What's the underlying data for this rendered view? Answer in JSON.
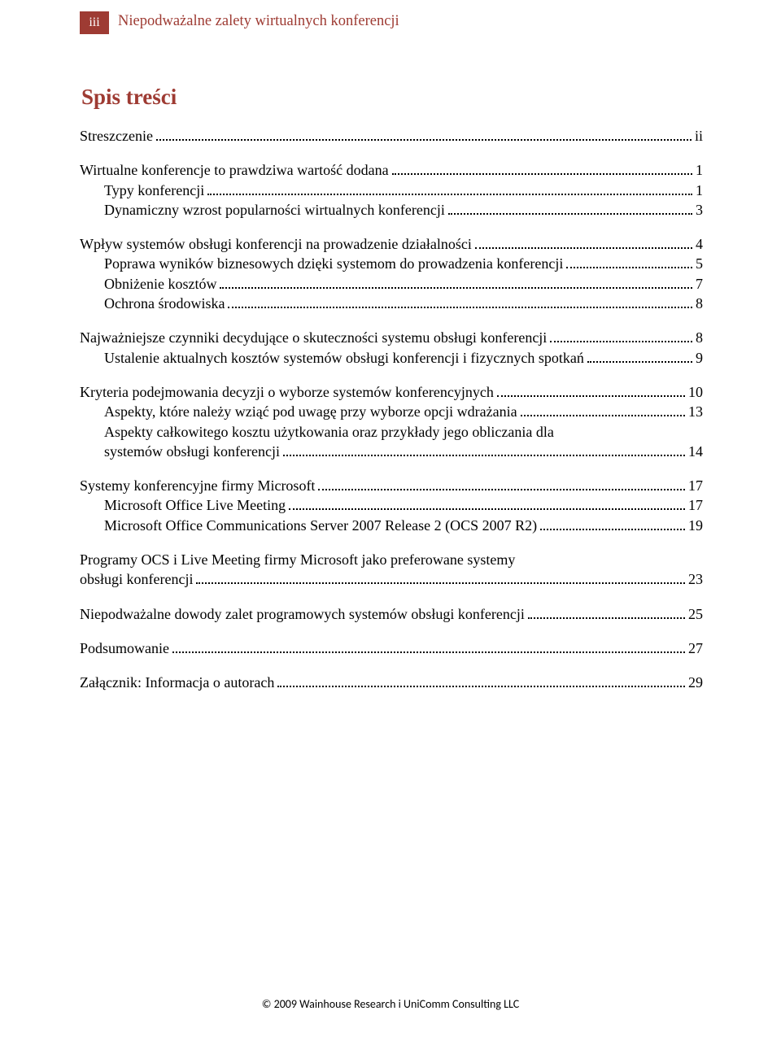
{
  "colors": {
    "accent": "#9e3b33",
    "text": "#000000",
    "bg": "#ffffff"
  },
  "header": {
    "page_number": "iii",
    "running_title": "Niepodważalne zalety wirtualnych konferencji"
  },
  "toc_heading": "Spis treści",
  "toc": [
    {
      "type": "block",
      "items": [
        {
          "level": 0,
          "label": "Streszczenie",
          "page": "ii"
        }
      ]
    },
    {
      "type": "block",
      "items": [
        {
          "level": 0,
          "label": "Wirtualne konferencje to prawdziwa wartość dodana",
          "page": "1"
        },
        {
          "level": 1,
          "label": "Typy konferencji",
          "page": "1"
        },
        {
          "level": 1,
          "label": "Dynamiczny wzrost popularności wirtualnych konferencji",
          "page": "3"
        }
      ]
    },
    {
      "type": "block",
      "items": [
        {
          "level": 0,
          "label": "Wpływ systemów obsługi konferencji na prowadzenie działalności",
          "page": "4"
        },
        {
          "level": 1,
          "label": "Poprawa wyników biznesowych dzięki systemom do prowadzenia konferencji",
          "page": "5"
        },
        {
          "level": 1,
          "label": "Obniżenie kosztów",
          "page": "7"
        },
        {
          "level": 1,
          "label": "Ochrona środowiska",
          "page": "8"
        }
      ]
    },
    {
      "type": "block",
      "items": [
        {
          "level": 0,
          "label": "Najważniejsze czynniki decydujące o skuteczności systemu obsługi konferencji",
          "page": "8"
        },
        {
          "level": 1,
          "label": "Ustalenie aktualnych kosztów systemów obsługi konferencji i fizycznych spotkań",
          "page": "9"
        }
      ]
    },
    {
      "type": "block",
      "items": [
        {
          "level": 0,
          "label": "Kryteria podejmowania decyzji o wyborze systemów konferencyjnych",
          "page": "10"
        },
        {
          "level": 1,
          "label": "Aspekty, które należy wziąć pod uwagę przy wyborze opcji wdrażania",
          "page": "13"
        },
        {
          "level": 1,
          "label_lines": [
            "Aspekty całkowitego kosztu użytkowania oraz przykłady jego obliczania dla",
            "systemów obsługi konferencji"
          ],
          "page": "14"
        }
      ]
    },
    {
      "type": "block",
      "items": [
        {
          "level": 0,
          "label": "Systemy konferencyjne firmy Microsoft",
          "page": "17"
        },
        {
          "level": 1,
          "label": "Microsoft Office Live Meeting",
          "page": "17"
        },
        {
          "level": 1,
          "label": "Microsoft Office Communications Server 2007 Release 2 (OCS 2007 R2)",
          "page": "19"
        }
      ]
    },
    {
      "type": "block",
      "items": [
        {
          "level": 0,
          "label_lines": [
            "Programy OCS i Live Meeting firmy Microsoft jako preferowane systemy",
            "obsługi konferencji"
          ],
          "page": "23"
        }
      ]
    },
    {
      "type": "block",
      "items": [
        {
          "level": 0,
          "label": "Niepodważalne dowody zalet programowych systemów obsługi konferencji",
          "page": "25"
        }
      ]
    },
    {
      "type": "block",
      "items": [
        {
          "level": 0,
          "label": "Podsumowanie",
          "page": "27"
        }
      ]
    },
    {
      "type": "block",
      "items": [
        {
          "level": 0,
          "label": "Załącznik: Informacja o autorach",
          "page": "29"
        }
      ]
    }
  ],
  "footer": "© 2009 Wainhouse Research i UniComm Consulting LLC"
}
